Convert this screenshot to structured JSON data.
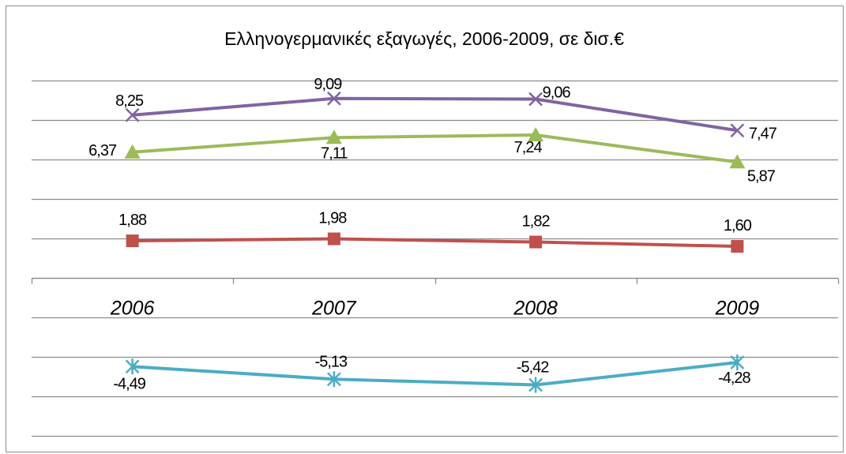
{
  "chart_data": {
    "type": "line",
    "title": "Ελληνογερμανικές εξαγωγές, 2006-2009, σε δισ.€",
    "categories": [
      "2006",
      "2007",
      "2008",
      "2009"
    ],
    "series": [
      {
        "values": [
          8.25,
          9.09,
          9.06,
          7.47
        ],
        "labels": [
          "8,25",
          "9,09",
          "9,06",
          "7,47"
        ],
        "color": "#8064a2",
        "marker": "x"
      },
      {
        "values": [
          6.37,
          7.11,
          7.24,
          5.87
        ],
        "labels": [
          "6,37",
          "7,11",
          "7,24",
          "5,87"
        ],
        "color": "#9bbb59",
        "marker": "triangle"
      },
      {
        "values": [
          1.88,
          1.98,
          1.82,
          1.6
        ],
        "labels": [
          "1,88",
          "1,98",
          "1,82",
          "1,60"
        ],
        "color": "#c0504d",
        "marker": "square"
      },
      {
        "values": [
          -4.49,
          -5.13,
          -5.42,
          -4.28
        ],
        "labels": [
          "-4,49",
          "-5,13",
          "-5,42",
          "-4,28"
        ],
        "color": "#4bacc6",
        "marker": "star"
      }
    ],
    "ylim": [
      -8,
      10
    ],
    "grid": true,
    "legend": "none"
  }
}
